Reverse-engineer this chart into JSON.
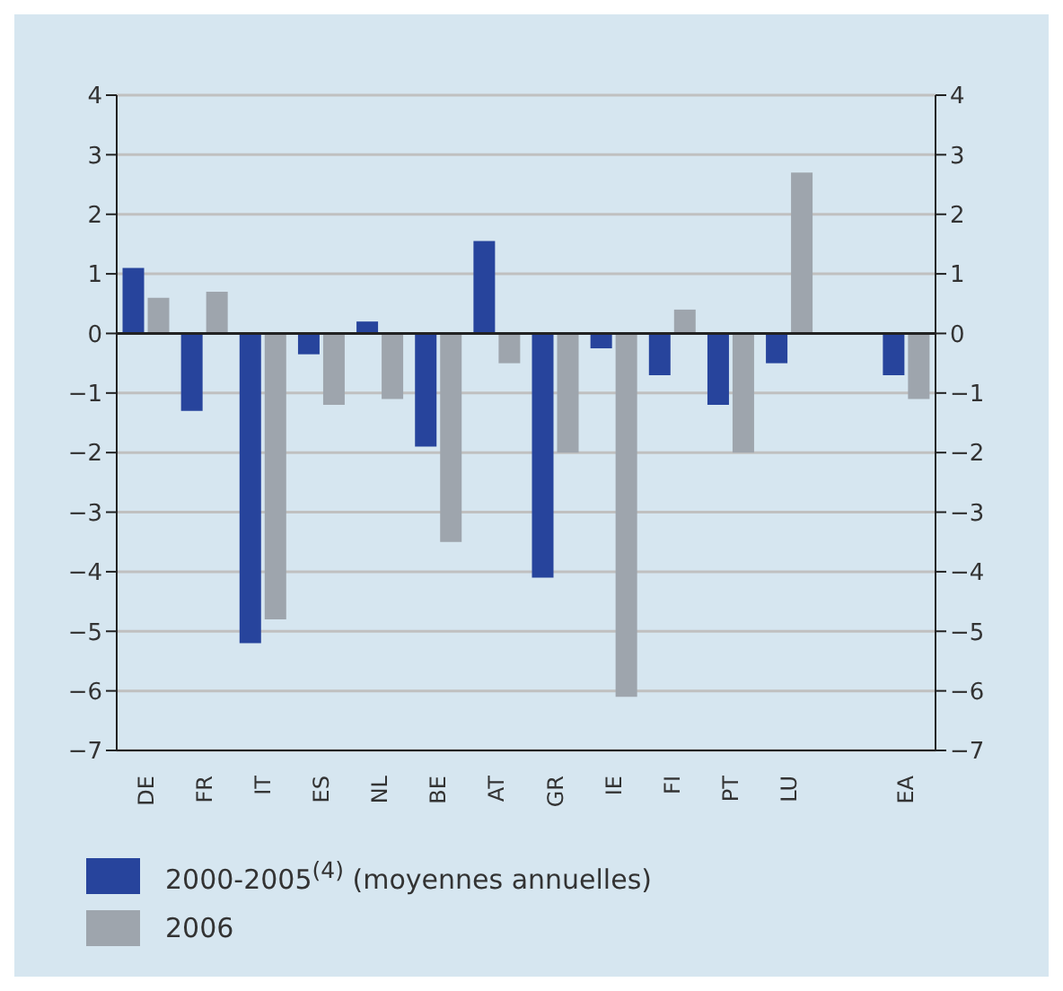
{
  "chart_data": {
    "type": "bar",
    "categories": [
      "DE",
      "FR",
      "IT",
      "ES",
      "NL",
      "BE",
      "AT",
      "GR",
      "IE",
      "FI",
      "PT",
      "LU",
      null,
      "EA"
    ],
    "series": [
      {
        "name": "2000-2005$^{(4)}$ (moyennes annuelles)",
        "color": "#27449c",
        "values": [
          1.1,
          -1.3,
          -5.2,
          -0.35,
          0.2,
          -1.9,
          1.55,
          -4.1,
          -0.25,
          -0.7,
          -1.2,
          -0.5,
          null,
          -0.7
        ]
      },
      {
        "name": "2006",
        "color": "#9ea5ad",
        "values": [
          0.6,
          0.7,
          -4.8,
          -1.2,
          -1.1,
          -3.5,
          -0.5,
          -2.0,
          -6.1,
          0.4,
          -2.0,
          2.7,
          null,
          -1.1
        ]
      }
    ],
    "ylim": [
      -7,
      4
    ],
    "yticks": [
      {
        "value": -7,
        "label": "−7"
      },
      {
        "value": -6,
        "label": "−6"
      },
      {
        "value": -5,
        "label": "−5"
      },
      {
        "value": -4,
        "label": "−4"
      },
      {
        "value": -3,
        "label": "−3"
      },
      {
        "value": -2,
        "label": "−2"
      },
      {
        "value": -1,
        "label": "−1"
      },
      0,
      1,
      2,
      3,
      4
    ],
    "y2lim": [
      -7,
      4
    ],
    "y2ticks": [
      {
        "value": -7,
        "label": "−7"
      },
      {
        "value": -6,
        "label": "−6"
      },
      {
        "value": -5,
        "label": "−5"
      },
      {
        "value": -4,
        "label": "−4"
      },
      {
        "value": -3,
        "label": "−3"
      },
      {
        "value": -2,
        "label": "−2"
      },
      {
        "value": -1,
        "label": "−1"
      },
      0,
      1,
      2,
      3,
      4
    ],
    "grid": "y",
    "legend": "bottom"
  }
}
